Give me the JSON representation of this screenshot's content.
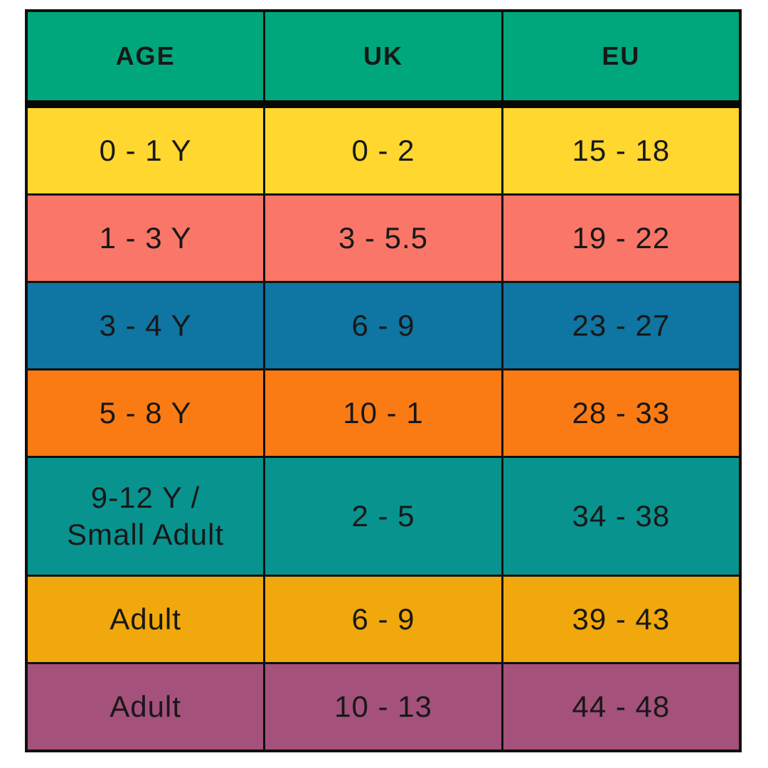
{
  "chart_data": {
    "type": "table",
    "columns": [
      "AGE",
      "UK",
      "EU"
    ],
    "rows": [
      [
        "0 - 1 Y",
        "0 - 2",
        "15 - 18"
      ],
      [
        "1 - 3 Y",
        "3 - 5.5",
        "19 - 22"
      ],
      [
        "3 - 4 Y",
        "6 - 9",
        "23 - 27"
      ],
      [
        "5 - 8 Y",
        "10 - 1",
        "28 - 33"
      ],
      [
        "9-12 Y /\nSmall Adult",
        "2 - 5",
        "34 - 38"
      ],
      [
        "Adult",
        "6 - 9",
        "39 - 43"
      ],
      [
        "Adult",
        "10 - 13",
        "44 - 48"
      ]
    ],
    "header_color": "#00a77c",
    "row_colors": [
      "#ffd72e",
      "#f97668",
      "#0f75a2",
      "#fa7b14",
      "#08938f",
      "#f0a80c",
      "#a4517b"
    ],
    "text_color": "#181818",
    "border_color": "#101010",
    "legend": "none",
    "grid": "solid black cell borders, thick separator under header"
  }
}
